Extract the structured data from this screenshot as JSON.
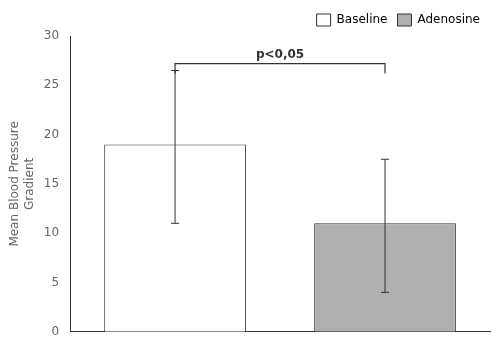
{
  "chart_data": {
    "type": "bar",
    "categories": [
      "Baseline",
      "Adenosine"
    ],
    "values": [
      19.0,
      11.0
    ],
    "errors_upper": [
      7.5,
      6.5
    ],
    "errors_lower": [
      8.0,
      7.0
    ],
    "colors": [
      "#ffffff",
      "#b0b0b0"
    ],
    "ylabel": "Mean Blood Pressure\nGradient",
    "ylim": [
      0,
      30
    ],
    "yticks": [
      0,
      5,
      10,
      15,
      20,
      25,
      30
    ],
    "annotations": [
      {
        "text": "p<0,05",
        "y": 27.5,
        "bracket": {
          "from": "Baseline",
          "to": "Adenosine",
          "y": 27.2,
          "drop": 1.0
        }
      }
    ],
    "legend": "upper right",
    "grid": false,
    "tick_labels": "y"
  }
}
